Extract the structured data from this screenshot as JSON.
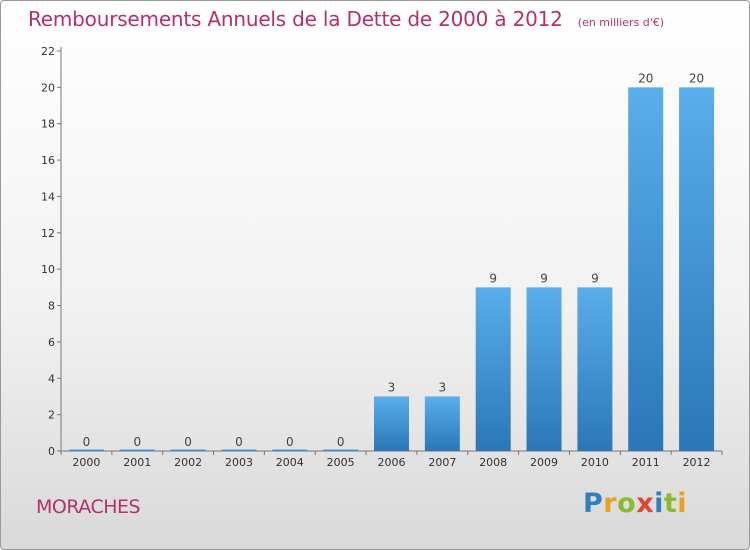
{
  "title": "Remboursements Annuels de la Dette de 2000 à 2012",
  "subtitle": "(en milliers d'€)",
  "commune": "MORACHES",
  "logo": {
    "letters": [
      "P",
      "r",
      "o",
      "x",
      "i",
      "t",
      "i"
    ],
    "text": "Proxiti"
  },
  "colors": {
    "title": "#b5306d",
    "bar_top": "#5aaeea",
    "bar_bottom": "#2a77b8"
  },
  "chart_data": {
    "type": "bar",
    "categories": [
      "2000",
      "2001",
      "2002",
      "2003",
      "2004",
      "2005",
      "2006",
      "2007",
      "2008",
      "2009",
      "2010",
      "2011",
      "2012"
    ],
    "values": [
      0,
      0,
      0,
      0,
      0,
      0,
      3,
      3,
      9,
      9,
      9,
      20,
      20
    ],
    "data_labels": [
      "0",
      "0",
      "0",
      "0",
      "0",
      "0",
      "3",
      "3",
      "9",
      "9",
      "9",
      "20",
      "20"
    ],
    "ylim": [
      0,
      22
    ],
    "yticks": [
      0,
      2,
      4,
      6,
      8,
      10,
      12,
      14,
      16,
      18,
      20,
      22
    ],
    "grid": false,
    "legend": "none"
  }
}
